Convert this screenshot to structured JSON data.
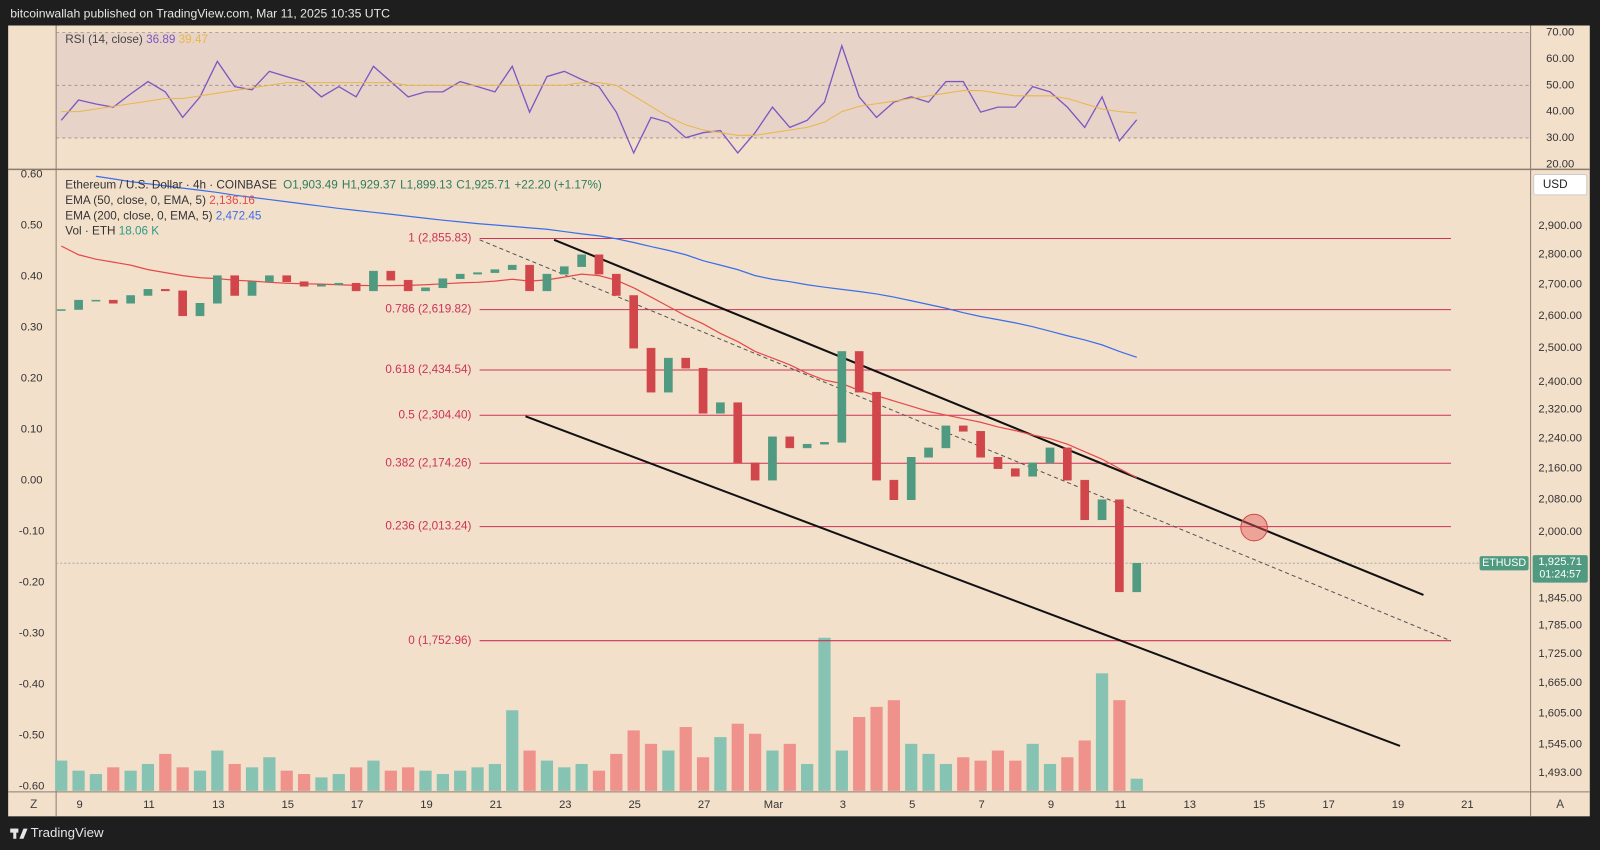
{
  "header": {
    "text": "bitcoinwallah published on TradingView.com, Mar 11, 2025 10:35 UTC"
  },
  "toolbar": {
    "currency": "USD",
    "zoom_button": "Z",
    "auto_button": "A"
  },
  "footer": {
    "brand": "TradingView"
  },
  "chart_data": [
    {
      "type": "candlestick",
      "title": "Ethereum / U.S. Dollar · 4h · COINBASE",
      "ohlc": [
        "O1,903.49",
        "H1,929.37",
        "L1,899.13",
        "C1,925.71"
      ],
      "change": "+22.20 (+1.17%)",
      "values": [
        2620,
        2650,
        2650,
        2640,
        2665,
        2685,
        2680,
        2600,
        2640,
        2730,
        2665,
        2710,
        2730,
        2710,
        2695,
        2700,
        2705,
        2680,
        2745,
        2715,
        2680,
        2690,
        2720,
        2735,
        2740,
        2750,
        2765,
        2680,
        2735,
        2760,
        2800,
        2735,
        2665,
        2500,
        2370,
        2470,
        2440,
        2310,
        2340,
        2175,
        2130,
        2245,
        2215,
        2225,
        2230,
        2490,
        2370,
        2130,
        2080,
        2190,
        2215,
        2275,
        2260,
        2190,
        2160,
        2140,
        2175,
        2215,
        2130,
        2030,
        2080,
        1860,
        1925.71
      ],
      "up_color": "#4f9a80",
      "down_color": "#d0464a",
      "volume": {
        "name": "Vol · ETH",
        "label": "18.06 K",
        "up_color": "#86c3b3",
        "down_color": "#f0928c",
        "values": [
          45,
          30,
          25,
          35,
          30,
          40,
          55,
          35,
          30,
          60,
          40,
          35,
          50,
          30,
          25,
          20,
          25,
          35,
          45,
          30,
          35,
          30,
          25,
          30,
          35,
          40,
          120,
          60,
          45,
          35,
          40,
          30,
          55,
          90,
          70,
          60,
          95,
          50,
          80,
          100,
          85,
          60,
          70,
          40,
          228,
          60,
          110,
          125,
          135,
          70,
          55,
          40,
          50,
          45,
          60,
          45,
          70,
          40,
          50,
          75,
          175,
          135,
          18.06
        ]
      },
      "series": [
        {
          "name": "EMA (50, close, 0, EMA, 5)",
          "color": "#e24a4a",
          "label": "2,136.16",
          "values": [
            2830,
            2800,
            2785,
            2775,
            2765,
            2750,
            2740,
            2730,
            2723,
            2720,
            2715,
            2712,
            2708,
            2705,
            2703,
            2702,
            2700,
            2698,
            2697,
            2697,
            2698,
            2700,
            2703,
            2706,
            2708,
            2712,
            2718,
            2712,
            2716,
            2725,
            2735,
            2730,
            2715,
            2690,
            2660,
            2630,
            2600,
            2575,
            2545,
            2520,
            2490,
            2470,
            2450,
            2425,
            2405,
            2395,
            2375,
            2360,
            2345,
            2330,
            2315,
            2305,
            2295,
            2285,
            2272,
            2262,
            2250,
            2240,
            2225,
            2205,
            2185,
            2160,
            2136.16
          ]
        },
        {
          "name": "EMA (200, close, 0, EMA, 5)",
          "color": "#3a6ee8",
          "label": "2,472.45",
          "values": [
            null,
            null,
            3080,
            3070,
            3060,
            3052,
            3044,
            3036,
            3028,
            3020,
            3010,
            3002,
            2994,
            2986,
            2978,
            2970,
            2962,
            2955,
            2948,
            2941,
            2934,
            2927,
            2920,
            2914,
            2908,
            2903,
            2898,
            2893,
            2888,
            2880,
            2872,
            2865,
            2855,
            2842,
            2828,
            2815,
            2800,
            2780,
            2765,
            2750,
            2730,
            2718,
            2710,
            2700,
            2692,
            2685,
            2678,
            2670,
            2660,
            2648,
            2636,
            2624,
            2610,
            2598,
            2588,
            2578,
            2566,
            2552,
            2538,
            2525,
            2510,
            2490,
            2472.45
          ]
        }
      ],
      "x_labels": [
        "9",
        "11",
        "13",
        "15",
        "17",
        "19",
        "21",
        "23",
        "25",
        "27",
        "Mar",
        "3",
        "5",
        "7",
        "9",
        "11",
        "13",
        "15",
        "17",
        "19",
        "21"
      ],
      "log_scale": true,
      "ylim": [
        1461,
        3098
      ],
      "yticks": [
        {
          "value": 2900,
          "label": "2,900.00"
        },
        {
          "value": 2800,
          "label": "2,800.00"
        },
        {
          "value": 2700,
          "label": "2,700.00"
        },
        {
          "value": 2600,
          "label": "2,600.00"
        },
        {
          "value": 2500,
          "label": "2,500.00"
        },
        {
          "value": 2400,
          "label": "2,400.00"
        },
        {
          "value": 2320,
          "label": "2,320.00"
        },
        {
          "value": 2240,
          "label": "2,240.00"
        },
        {
          "value": 2160,
          "label": "2,160.00"
        },
        {
          "value": 2080,
          "label": "2,080.00"
        },
        {
          "value": 2000,
          "label": "2,000.00"
        },
        {
          "value": 1845,
          "label": "1,845.00"
        },
        {
          "value": 1785,
          "label": "1,785.00"
        },
        {
          "value": 1725,
          "label": "1,725.00"
        },
        {
          "value": 1665,
          "label": "1,665.00"
        },
        {
          "value": 1605,
          "label": "1,605.00"
        },
        {
          "value": 1545,
          "label": "1,545.00"
        },
        {
          "value": 1493,
          "label": "1,493.00"
        }
      ],
      "y2lim": [
        -0.608,
        0.606
      ],
      "y2ticks": [
        {
          "value": 0.6,
          "label": "0.60"
        },
        {
          "value": 0.5,
          "label": "0.50"
        },
        {
          "value": 0.4,
          "label": "0.40"
        },
        {
          "value": 0.3,
          "label": "0.30"
        },
        {
          "value": 0.2,
          "label": "0.20"
        },
        {
          "value": 0.1,
          "label": "0.10"
        },
        {
          "value": 0,
          "label": "0.00"
        },
        {
          "value": -0.1,
          "label": "-0.10"
        },
        {
          "value": -0.2,
          "label": "-0.20"
        },
        {
          "value": -0.3,
          "label": "-0.30"
        },
        {
          "value": -0.4,
          "label": "-0.40"
        },
        {
          "value": -0.5,
          "label": "-0.50"
        },
        {
          "value": -0.6,
          "label": "-0.60"
        }
      ],
      "fib_color": "#cc3355",
      "fib_levels": [
        {
          "value": 2855.83,
          "label": "1 (2,855.83)"
        },
        {
          "value": 2619.82,
          "label": "0.786 (2,619.82)"
        },
        {
          "value": 2434.54,
          "label": "0.618 (2,434.54)"
        },
        {
          "value": 2304.4,
          "label": "0.5 (2,304.40)"
        },
        {
          "value": 2174.26,
          "label": "0.382 (2,174.26)"
        },
        {
          "value": 2013.24,
          "label": "0.236 (2,013.24)"
        },
        {
          "value": 1752.96,
          "label": "0 (1,752.96)"
        }
      ],
      "last_price": {
        "symbol": "ETHUSD",
        "label": "1,925.71",
        "countdown": "01:24:57"
      }
    },
    {
      "type": "line",
      "title": "RSI (14, close)",
      "series": [
        {
          "color": "#7e57c2",
          "label": "36.89",
          "values": [
            36.7,
            44.4,
            42.9,
            41.7,
            46.7,
            51.4,
            47.5,
            37.8,
            45.6,
            59.1,
            49.5,
            48.3,
            55.3,
            53.3,
            51.4,
            45.6,
            49.5,
            45.6,
            57.2,
            51.4,
            45.6,
            47.5,
            47.5,
            51.4,
            49.5,
            47.5,
            57.2,
            39.8,
            53.3,
            55.3,
            52.2,
            49.5,
            39.8,
            24.3,
            37.8,
            35.9,
            30.1,
            32.0,
            32.8,
            24.3,
            32.0,
            41.7,
            34.0,
            36.7,
            43.6,
            65.0,
            45.6,
            37.8,
            43.6,
            45.6,
            43.6,
            51.4,
            51.4,
            39.8,
            41.7,
            41.7,
            49.5,
            47.5,
            41.7,
            34.0,
            45.6,
            28.9,
            36.89
          ]
        },
        {
          "color": "#e8b84a",
          "label": "39.47",
          "values": [
            40,
            40,
            41,
            42,
            43,
            44,
            45,
            45,
            46,
            47,
            48,
            49,
            50,
            51,
            51,
            51,
            51,
            51,
            51,
            51,
            50,
            50,
            50,
            50,
            50,
            50,
            50,
            50,
            50,
            50,
            51,
            51,
            50,
            46,
            42,
            38,
            35,
            33,
            32,
            31,
            31,
            32,
            33,
            34,
            36,
            40,
            42,
            43,
            44,
            45,
            46,
            47,
            48,
            48,
            47,
            46,
            46,
            46,
            45,
            43,
            41,
            40,
            39.47
          ]
        }
      ],
      "ylim": [
        18.45,
        72.7
      ],
      "yticks": [
        {
          "value": 70,
          "label": "70.00"
        },
        {
          "value": 60,
          "label": "60.00"
        },
        {
          "value": 50,
          "label": "50.00"
        },
        {
          "value": 40,
          "label": "40.00"
        },
        {
          "value": 30,
          "label": "30.00"
        },
        {
          "value": 20,
          "label": "20.00"
        }
      ],
      "levels": [
        30,
        50,
        70
      ]
    }
  ]
}
